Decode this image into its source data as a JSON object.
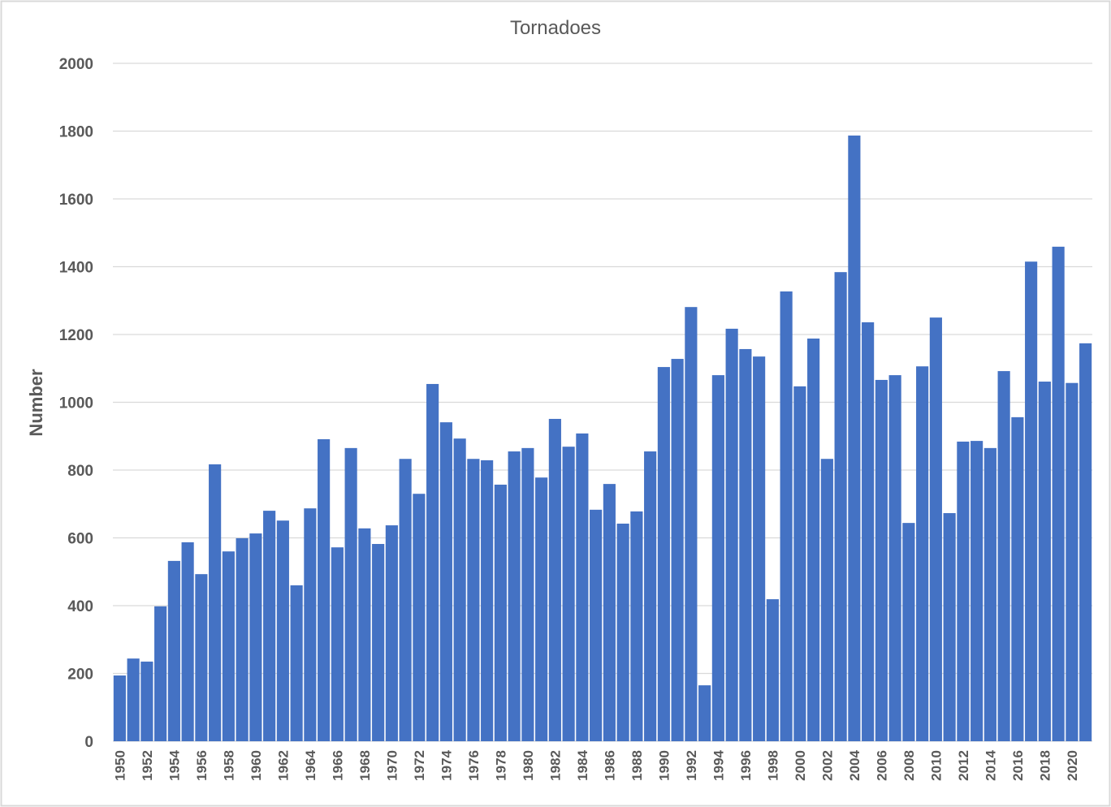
{
  "chart_data": {
    "type": "bar",
    "title": "Tornadoes",
    "xlabel": "",
    "ylabel": "Number",
    "ylim": [
      0,
      2000
    ],
    "yticks": [
      "0",
      "200",
      "400",
      "600",
      "800",
      "1000",
      "1200",
      "1400",
      "1600",
      "1800",
      "2000"
    ],
    "grid": true,
    "legend": "none",
    "color": "#4472C4",
    "categories": [
      "1950",
      "1951",
      "1952",
      "1953",
      "1954",
      "1955",
      "1956",
      "1957",
      "1958",
      "1959",
      "1960",
      "1961",
      "1962",
      "1963",
      "1964",
      "1965",
      "1966",
      "1967",
      "1968",
      "1969",
      "1970",
      "1971",
      "1972",
      "1973",
      "1974",
      "1975",
      "1976",
      "1977",
      "1978",
      "1979",
      "1980",
      "1981",
      "1982",
      "1983",
      "1984",
      "1985",
      "1986",
      "1987",
      "1988",
      "1989",
      "1990",
      "1991",
      "1992",
      "1993",
      "1994",
      "1995",
      "1996",
      "1997",
      "1998",
      "1999",
      "2000",
      "2001",
      "2002",
      "2003",
      "2004",
      "2005",
      "2006",
      "2007",
      "2008",
      "2009",
      "2010",
      "2011",
      "2012",
      "2013",
      "2014",
      "2015",
      "2016",
      "2017",
      "2018",
      "2019",
      "2020",
      "2021"
    ],
    "tick_labels": [
      "1950",
      "1952",
      "1954",
      "1956",
      "1958",
      "1960",
      "1962",
      "1964",
      "1966",
      "1968",
      "1970",
      "1972",
      "1974",
      "1976",
      "1978",
      "1980",
      "1982",
      "1984",
      "1986",
      "1988",
      "1990",
      "1992",
      "1994",
      "1996",
      "1998",
      "2000",
      "2002",
      "2004",
      "2006",
      "2008",
      "2010",
      "2012",
      "2014",
      "2016",
      "2018",
      "2020"
    ],
    "values": [
      194,
      244,
      235,
      398,
      532,
      587,
      493,
      817,
      560,
      599,
      613,
      680,
      651,
      460,
      687,
      891,
      572,
      865,
      628,
      582,
      637,
      833,
      730,
      1054,
      941,
      893,
      833,
      829,
      757,
      855,
      865,
      778,
      951,
      869,
      908,
      683,
      759,
      642,
      678,
      855,
      1104,
      1128,
      1281,
      165,
      1080,
      1217,
      1157,
      1135,
      419,
      1327,
      1047,
      1188,
      833,
      1384,
      1787,
      1236,
      1066,
      1080,
      644,
      1106,
      1250,
      673,
      884,
      886,
      865,
      1092,
      956,
      1415,
      1061,
      1459,
      1057,
      1174
    ]
  }
}
